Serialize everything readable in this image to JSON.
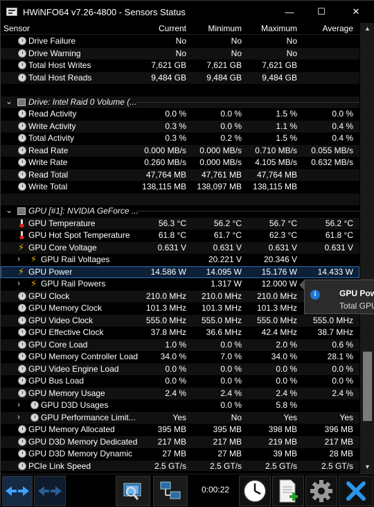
{
  "window": {
    "title": "HWiNFO64 v7.26-4800 - Sensors Status",
    "controls": {
      "minimize": "—",
      "maximize": "☐",
      "close": "✕"
    }
  },
  "columns": {
    "sensor": "Sensor",
    "current": "Current",
    "minimum": "Minimum",
    "maximum": "Maximum",
    "average": "Average"
  },
  "rows": [
    {
      "type": "item",
      "icon": "clock",
      "label": "Drive Failure",
      "cur": "No",
      "min": "No",
      "max": "No",
      "avg": ""
    },
    {
      "type": "item",
      "icon": "clock",
      "label": "Drive Warning",
      "cur": "No",
      "min": "No",
      "max": "No",
      "avg": ""
    },
    {
      "type": "item",
      "icon": "clock",
      "label": "Total Host Writes",
      "cur": "7,621 GB",
      "min": "7,621 GB",
      "max": "7,621 GB",
      "avg": ""
    },
    {
      "type": "item",
      "icon": "clock",
      "label": "Total Host Reads",
      "cur": "9,484 GB",
      "min": "9,484 GB",
      "max": "9,484 GB",
      "avg": ""
    },
    {
      "type": "blank"
    },
    {
      "type": "group",
      "label": "Drive: Intel Raid 0 Volume (..."
    },
    {
      "type": "item",
      "icon": "clock",
      "label": "Read Activity",
      "cur": "0.0 %",
      "min": "0.0 %",
      "max": "1.5 %",
      "avg": "0.0 %"
    },
    {
      "type": "item",
      "icon": "clock",
      "label": "Write Activity",
      "cur": "0.3 %",
      "min": "0.0 %",
      "max": "1.1 %",
      "avg": "0.4 %"
    },
    {
      "type": "item",
      "icon": "clock",
      "label": "Total Activity",
      "cur": "0.3 %",
      "min": "0.2 %",
      "max": "1.5 %",
      "avg": "0.4 %"
    },
    {
      "type": "item",
      "icon": "clock",
      "label": "Read Rate",
      "cur": "0.000 MB/s",
      "min": "0.000 MB/s",
      "max": "0.710 MB/s",
      "avg": "0.055 MB/s"
    },
    {
      "type": "item",
      "icon": "clock",
      "label": "Write Rate",
      "cur": "0.260 MB/s",
      "min": "0.000 MB/s",
      "max": "4.105 MB/s",
      "avg": "0.632 MB/s"
    },
    {
      "type": "item",
      "icon": "clock",
      "label": "Read Total",
      "cur": "47,764 MB",
      "min": "47,761 MB",
      "max": "47,764 MB",
      "avg": ""
    },
    {
      "type": "item",
      "icon": "clock",
      "label": "Write Total",
      "cur": "138,115 MB",
      "min": "138,097 MB",
      "max": "138,115 MB",
      "avg": ""
    },
    {
      "type": "blank"
    },
    {
      "type": "group",
      "label": "GPU [#1]: NVIDIA GeForce ..."
    },
    {
      "type": "item",
      "icon": "therm",
      "label": "GPU Temperature",
      "cur": "56.3 °C",
      "min": "56.2 °C",
      "max": "56.7 °C",
      "avg": "56.2 °C"
    },
    {
      "type": "item",
      "icon": "therm",
      "label": "GPU Hot Spot Temperature",
      "cur": "61.8 °C",
      "min": "61.7 °C",
      "max": "62.3 °C",
      "avg": "61.8 °C"
    },
    {
      "type": "item",
      "icon": "bolt",
      "label": "GPU Core Voltage",
      "cur": "0.631 V",
      "min": "0.631 V",
      "max": "0.631 V",
      "avg": "0.631 V"
    },
    {
      "type": "sub",
      "icon": "bolt",
      "label": "GPU Rail Voltages",
      "cur": "",
      "min": "20.221 V",
      "max": "20.346 V",
      "avg": ""
    },
    {
      "type": "item",
      "icon": "bolt",
      "label": "GPU Power",
      "cur": "14.586 W",
      "min": "14.095 W",
      "max": "15.176 W",
      "avg": "14.433 W",
      "selected": true
    },
    {
      "type": "sub",
      "icon": "bolt",
      "label": "GPU Rail Powers",
      "cur": "",
      "min": "1.317 W",
      "max": "12.000 W",
      "avg": ""
    },
    {
      "type": "item",
      "icon": "clock",
      "label": "GPU Clock",
      "cur": "210.0 MHz",
      "min": "210.0 MHz",
      "max": "210.0 MHz",
      "avg": ""
    },
    {
      "type": "item",
      "icon": "clock",
      "label": "GPU Memory Clock",
      "cur": "101.3 MHz",
      "min": "101.3 MHz",
      "max": "101.3 MHz",
      "avg": ""
    },
    {
      "type": "item",
      "icon": "clock",
      "label": "GPU Video Clock",
      "cur": "555.0 MHz",
      "min": "555.0 MHz",
      "max": "555.0 MHz",
      "avg": "555.0 MHz"
    },
    {
      "type": "item",
      "icon": "clock",
      "label": "GPU Effective Clock",
      "cur": "37.8 MHz",
      "min": "36.6 MHz",
      "max": "42.4 MHz",
      "avg": "38.7 MHz"
    },
    {
      "type": "item",
      "icon": "clock",
      "label": "GPU Core Load",
      "cur": "1.0 %",
      "min": "0.0 %",
      "max": "2.0 %",
      "avg": "0.6 %"
    },
    {
      "type": "item",
      "icon": "clock",
      "label": "GPU Memory Controller Load",
      "cur": "34.0 %",
      "min": "7.0 %",
      "max": "34.0 %",
      "avg": "28.1 %"
    },
    {
      "type": "item",
      "icon": "clock",
      "label": "GPU Video Engine Load",
      "cur": "0.0 %",
      "min": "0.0 %",
      "max": "0.0 %",
      "avg": "0.0 %"
    },
    {
      "type": "item",
      "icon": "clock",
      "label": "GPU Bus Load",
      "cur": "0.0 %",
      "min": "0.0 %",
      "max": "0.0 %",
      "avg": "0.0 %"
    },
    {
      "type": "item",
      "icon": "clock",
      "label": "GPU Memory Usage",
      "cur": "2.4 %",
      "min": "2.4 %",
      "max": "2.4 %",
      "avg": "2.4 %"
    },
    {
      "type": "sub",
      "icon": "clock",
      "label": "GPU D3D Usages",
      "cur": "",
      "min": "0.0 %",
      "max": "5.8 %",
      "avg": ""
    },
    {
      "type": "sub",
      "icon": "clock",
      "label": "GPU Performance Limit...",
      "cur": "Yes",
      "min": "No",
      "max": "Yes",
      "avg": "Yes"
    },
    {
      "type": "item",
      "icon": "clock",
      "label": "GPU Memory Allocated",
      "cur": "395 MB",
      "min": "395 MB",
      "max": "398 MB",
      "avg": "396 MB"
    },
    {
      "type": "item",
      "icon": "clock",
      "label": "GPU D3D Memory Dedicated",
      "cur": "217 MB",
      "min": "217 MB",
      "max": "219 MB",
      "avg": "217 MB"
    },
    {
      "type": "item",
      "icon": "clock",
      "label": "GPU D3D Memory Dynamic",
      "cur": "27 MB",
      "min": "27 MB",
      "max": "39 MB",
      "avg": "28 MB"
    },
    {
      "type": "item",
      "icon": "clock",
      "label": "PCIe Link Speed",
      "cur": "2.5 GT/s",
      "min": "2.5 GT/s",
      "max": "2.5 GT/s",
      "avg": "2.5 GT/s"
    }
  ],
  "tooltip": {
    "title": "GPU Pow",
    "body": "Total GPU",
    "icon": "info-icon"
  },
  "toolbar": {
    "timer": "0:00:22",
    "buttons": [
      "arrows-left-icon",
      "arrows-right-icon",
      "report-icon",
      "network-icon",
      "clock-icon",
      "log-add-icon",
      "settings-gear-icon",
      "close-x-icon"
    ]
  },
  "colors": {
    "background": "#000000",
    "selected_row": "#0c2038",
    "selected_border": "#2f6fb3",
    "bolt": "#f5b400",
    "thermometer": "#dd2222",
    "accent_blue": "#1e78d2"
  }
}
